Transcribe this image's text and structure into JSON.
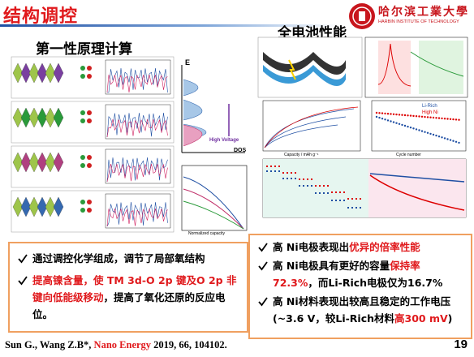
{
  "header": {
    "title": "结构调控",
    "university_name": "哈尔滨工業大學",
    "university_name_en": "HARBIN INSTITUTE OF TECHNOLOGY"
  },
  "left_section": {
    "title": "第一性原理计算",
    "figure_labels": {
      "energy_axis": "E",
      "dos_axis": "DOS",
      "high_voltage": "High Voltage",
      "capacity_axis": "Normalized capacity"
    }
  },
  "right_section": {
    "title": "全电池性能",
    "figure_labels": {
      "capacity_axis": "Capacity / mAh g⁻¹",
      "cycle_axis": "Cycle number",
      "legend_li_rich": "Li-Rich",
      "legend_high_ni": "High Ni"
    }
  },
  "left_points": [
    {
      "segments": [
        {
          "text": "通过调控化学组成，调节了局部氧结构",
          "highlight": false
        }
      ]
    },
    {
      "segments": [
        {
          "text": "提高镍含量，使 TM 3d-O 2p 键及O 2p 非键向低能级移动",
          "highlight": true
        },
        {
          "text": "，提高了氧化还原的反应电位。",
          "highlight": false
        }
      ]
    }
  ],
  "right_points": [
    {
      "segments": [
        {
          "text": "高 Ni电极表现出",
          "highlight": false
        },
        {
          "text": "优异的倍率性能",
          "highlight": true
        }
      ]
    },
    {
      "segments": [
        {
          "text": " 高 Ni电极具有更好的容量",
          "highlight": false
        },
        {
          "text": "保持率 72.3%",
          "highlight": true
        },
        {
          "text": "，而Li-Rich电极仅为16.7%",
          "highlight": false
        }
      ]
    },
    {
      "segments": [
        {
          "text": " 高 Ni材料表现出较高且稳定的工作电压(~3.6 V，较Li-Rich材料",
          "highlight": false
        },
        {
          "text": "高300 mV",
          "highlight": true
        },
        {
          "text": ")",
          "highlight": false
        }
      ]
    }
  ],
  "citation": {
    "segments": [
      {
        "text": "Sun G., Wang Z.B*, ",
        "highlight": false
      },
      {
        "text": "Nano Energy",
        "highlight": true
      },
      {
        "text": " 2019, 66, 104102.",
        "highlight": false
      }
    ]
  },
  "page_number": "19"
}
